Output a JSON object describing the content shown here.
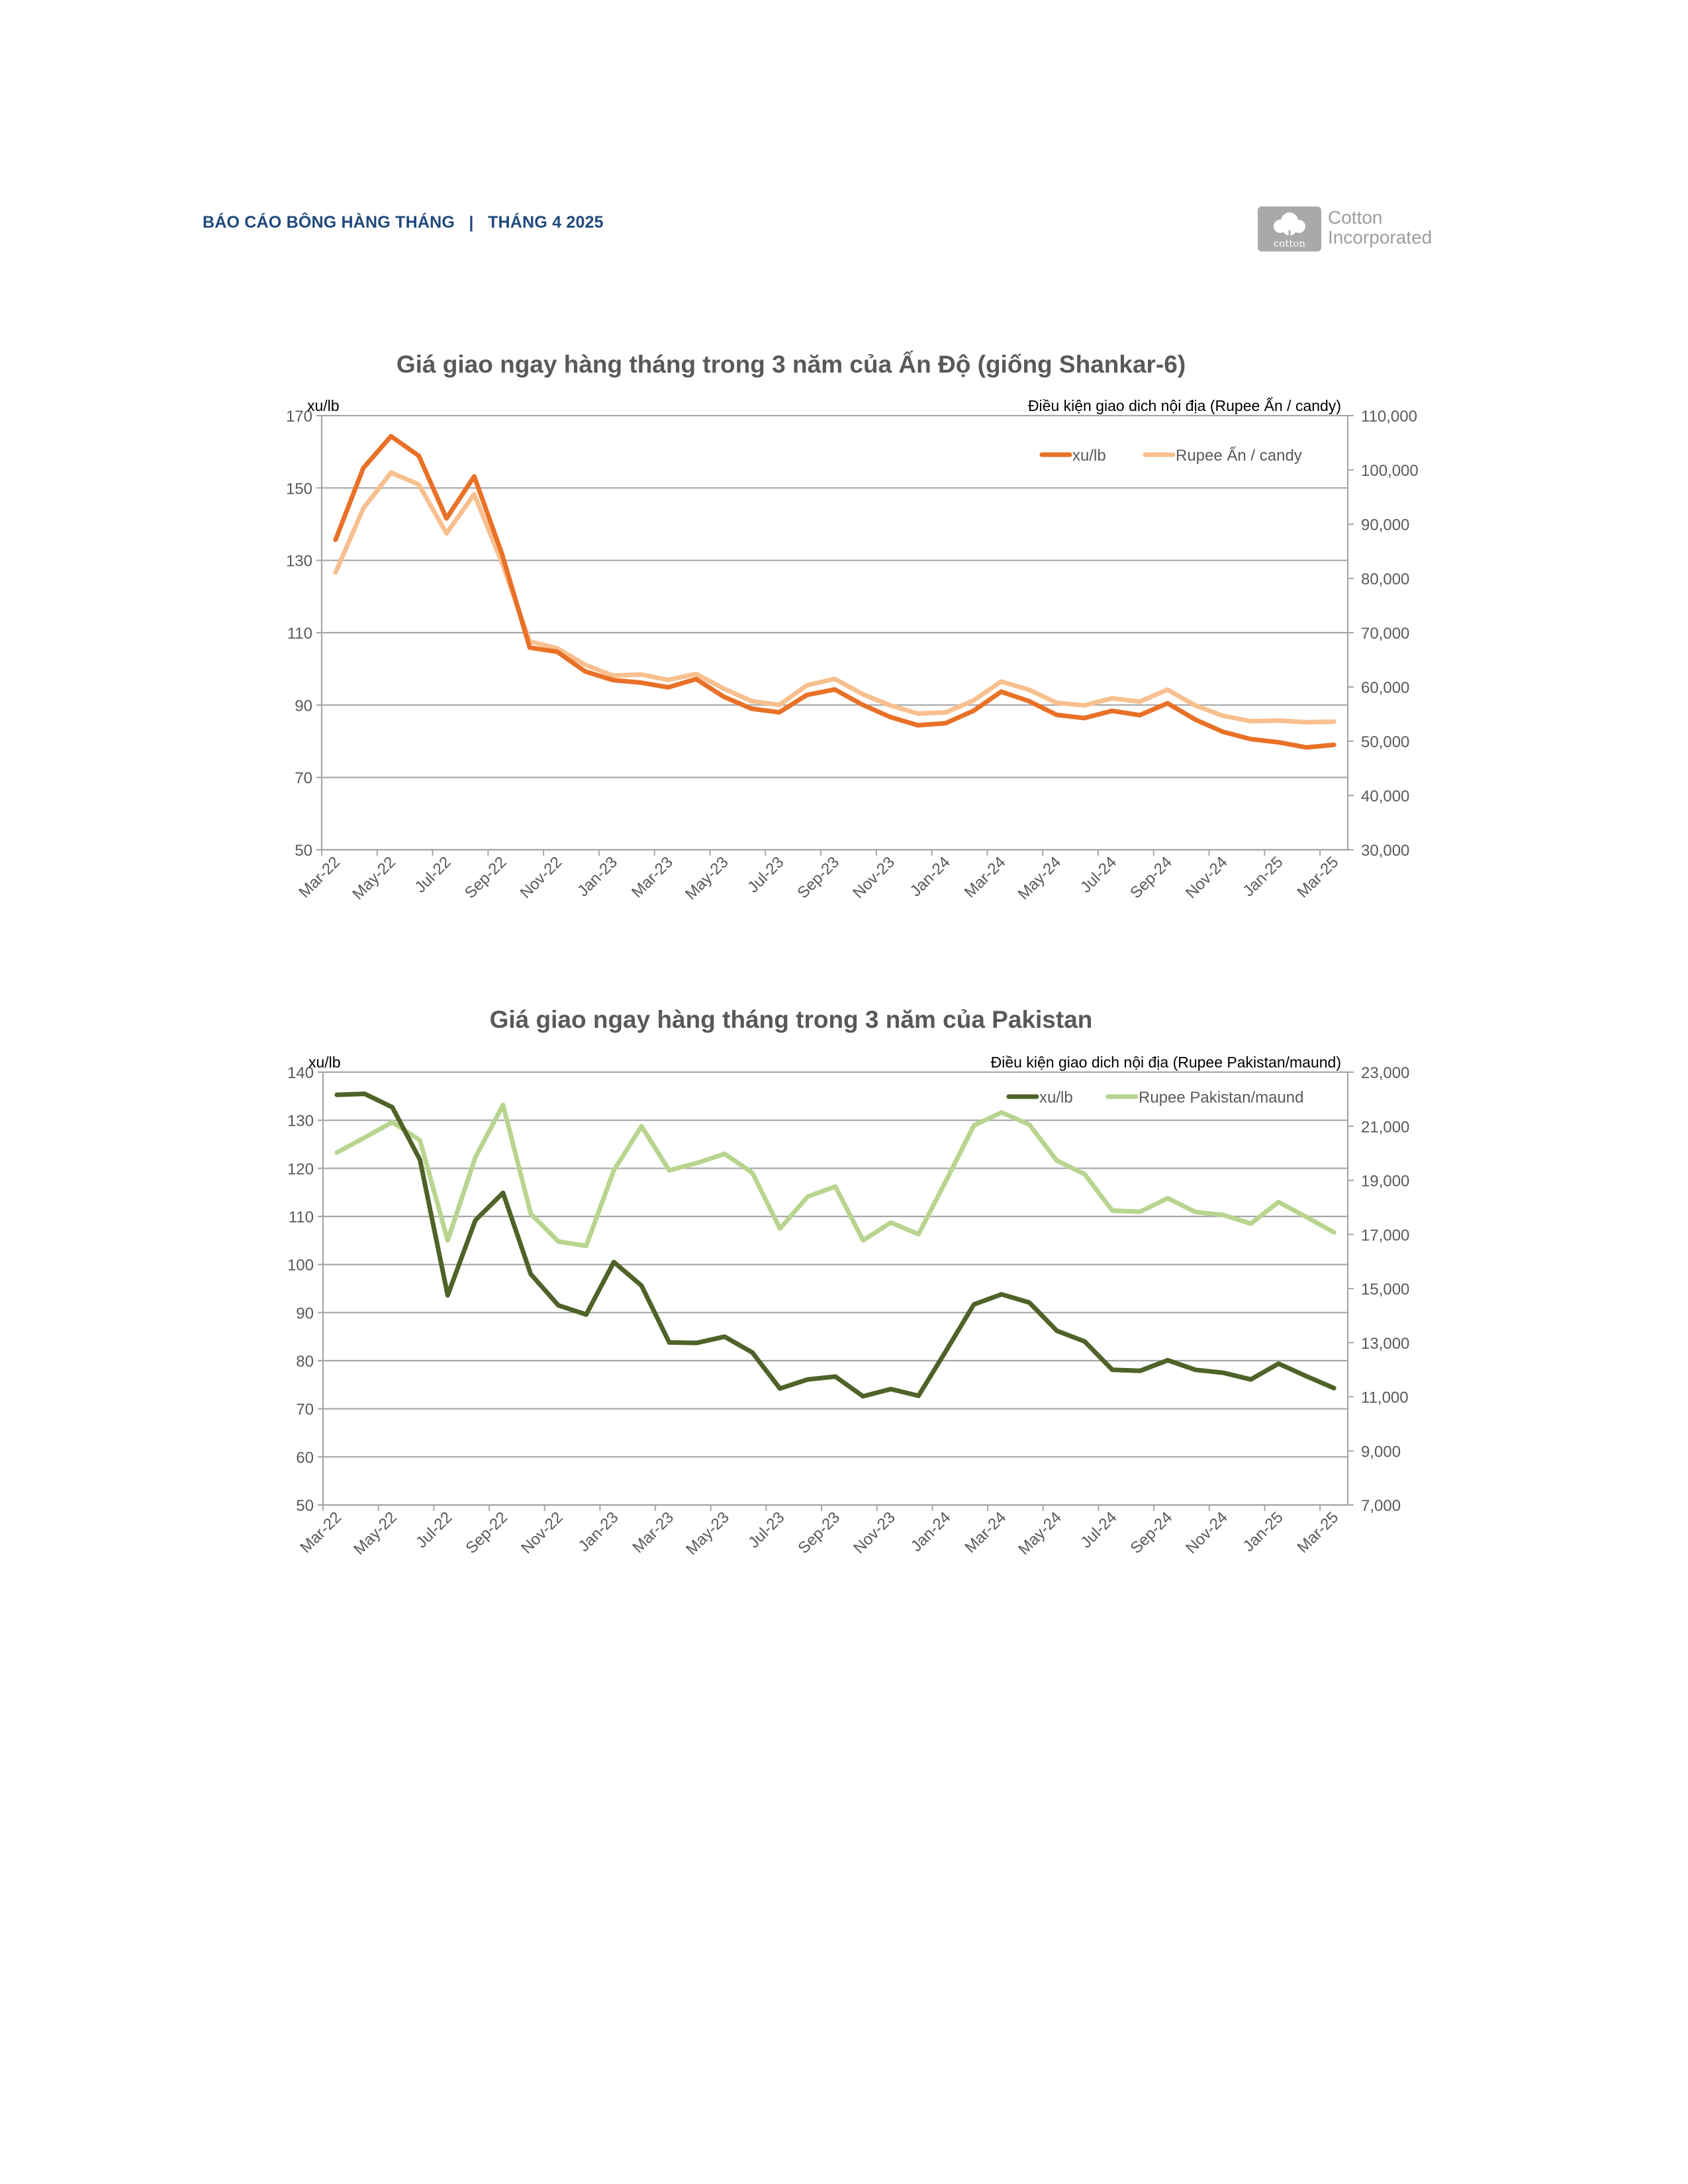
{
  "header": {
    "report": "BÁO CÁO BÔNG HÀNG THÁNG",
    "separator": "|",
    "issue": "THÁNG 4 2025"
  },
  "logo": {
    "mark_text": "cotton",
    "line1": "Cotton",
    "line2": "Incorporated",
    "color": "#a9a9ab"
  },
  "chart_data": [
    {
      "type": "line",
      "title": "Giá giao ngay hàng tháng trong 3 năm của Ấn Độ (giống Shankar-6)",
      "ylabel": "xu/lb",
      "y2label": "Điều kiện giao dich nội địa (Rupee Ấn / candy)",
      "ylim": [
        50,
        170
      ],
      "y2lim": [
        30000,
        110000
      ],
      "yticks": [
        "50",
        "70",
        "90",
        "110",
        "130",
        "150",
        "170"
      ],
      "y2ticks": [
        "30,000",
        "40,000",
        "50,000",
        "60,000",
        "70,000",
        "80,000",
        "90,000",
        "100,000",
        "110,000"
      ],
      "grid": true,
      "legend_position": "top-right",
      "x": [
        "Mar-22",
        "Apr-22",
        "May-22",
        "Jun-22",
        "Jul-22",
        "Aug-22",
        "Sep-22",
        "Oct-22",
        "Nov-22",
        "Dec-22",
        "Jan-23",
        "Feb-23",
        "Mar-23",
        "Apr-23",
        "May-23",
        "Jun-23",
        "Jul-23",
        "Aug-23",
        "Sep-23",
        "Oct-23",
        "Nov-23",
        "Dec-23",
        "Jan-24",
        "Feb-24",
        "Mar-24",
        "Apr-24",
        "May-24",
        "Jun-24",
        "Jul-24",
        "Aug-24",
        "Sep-24",
        "Oct-24",
        "Nov-24",
        "Dec-24",
        "Jan-25",
        "Feb-25",
        "Mar-25"
      ],
      "xticklabels": [
        "Mar-22",
        "May-22",
        "Jul-22",
        "Sep-22",
        "Nov-22",
        "Jan-23",
        "Mar-23",
        "May-23",
        "Jul-23",
        "Sep-23",
        "Nov-23",
        "Jan-24",
        "Mar-24",
        "May-24",
        "Jul-24",
        "Sep-24",
        "Nov-24",
        "Jan-25",
        "Mar-25"
      ],
      "series": [
        {
          "name": "xu/lb",
          "axis": "left",
          "color": "#e87127",
          "values": [
            135.7,
            155.5,
            164.3,
            158.9,
            141.6,
            153.2,
            131.8,
            105.9,
            104.7,
            99.3,
            96.9,
            96.2,
            94.9,
            97.2,
            92.3,
            89.0,
            88.0,
            92.8,
            94.3,
            90.1,
            86.7,
            84.4,
            85.0,
            88.4,
            93.7,
            91.1,
            87.3,
            86.4,
            88.4,
            87.2,
            90.5,
            86.0,
            82.6,
            80.6,
            79.7,
            78.3,
            79.0
          ]
        },
        {
          "name": "Rupee Ấn / candy",
          "axis": "right",
          "color": "#f8c08f",
          "values": [
            81100,
            92900,
            99500,
            97300,
            88300,
            95500,
            82900,
            68400,
            67100,
            64100,
            62100,
            62300,
            61300,
            62400,
            59700,
            57400,
            56700,
            60300,
            61500,
            58700,
            56600,
            55100,
            55300,
            57500,
            61000,
            59500,
            57100,
            56600,
            57900,
            57300,
            59500,
            56600,
            54700,
            53700,
            53800,
            53500,
            53600
          ]
        }
      ]
    },
    {
      "type": "line",
      "title": "Giá giao ngay hàng tháng trong 3 năm của Pakistan",
      "ylabel": "xu/lb",
      "y2label": "Điều kiện giao dich nội địa (Rupee Pakistan/maund)",
      "ylim": [
        50,
        140
      ],
      "y2lim": [
        7000,
        23000
      ],
      "yticks": [
        "50",
        "60",
        "70",
        "80",
        "90",
        "100",
        "110",
        "120",
        "130",
        "140"
      ],
      "y2ticks": [
        "7,000",
        "9,000",
        "11,000",
        "13,000",
        "15,000",
        "17,000",
        "19,000",
        "21,000",
        "23,000"
      ],
      "grid": true,
      "legend_position": "top-right",
      "x": [
        "Mar-22",
        "Apr-22",
        "May-22",
        "Jun-22",
        "Jul-22",
        "Aug-22",
        "Sep-22",
        "Oct-22",
        "Nov-22",
        "Dec-22",
        "Jan-23",
        "Feb-23",
        "Mar-23",
        "Apr-23",
        "May-23",
        "Jun-23",
        "Jul-23",
        "Aug-23",
        "Sep-23",
        "Oct-23",
        "Nov-23",
        "Dec-23",
        "Jan-24",
        "Feb-24",
        "Mar-24",
        "Apr-24",
        "May-24",
        "Jun-24",
        "Jul-24",
        "Aug-24",
        "Sep-24",
        "Oct-24",
        "Nov-24",
        "Dec-24",
        "Jan-25",
        "Feb-25",
        "Mar-25"
      ],
      "xticklabels": [
        "Mar-22",
        "May-22",
        "Jul-22",
        "Sep-22",
        "Nov-22",
        "Jan-23",
        "Mar-23",
        "May-23",
        "Jul-23",
        "Sep-23",
        "Nov-23",
        "Jan-24",
        "Mar-24",
        "May-24",
        "Jul-24",
        "Sep-24",
        "Nov-24",
        "Jan-25",
        "Mar-25"
      ],
      "series": [
        {
          "name": "xu/lb",
          "axis": "left",
          "color": "#4f6228",
          "values": [
            135.3,
            135.5,
            132.7,
            121.8,
            93.6,
            109.2,
            114.9,
            98.0,
            91.5,
            89.6,
            100.5,
            95.6,
            83.8,
            83.7,
            85.0,
            81.7,
            74.2,
            76.1,
            76.7,
            72.6,
            74.1,
            72.7,
            82.1,
            91.7,
            93.8,
            92.1,
            86.2,
            84.0,
            78.1,
            77.9,
            80.1,
            78.1,
            77.5,
            76.1,
            79.4,
            76.8,
            74.3
          ]
        },
        {
          "name": "Rupee Pakistan/maund",
          "axis": "right",
          "color": "#b7d58e",
          "values": [
            20030,
            20580,
            21150,
            20480,
            16780,
            19850,
            21790,
            17770,
            16740,
            16580,
            19370,
            21000,
            19370,
            19640,
            19980,
            19280,
            17220,
            18400,
            18770,
            16780,
            17440,
            17010,
            19000,
            21030,
            21510,
            21060,
            19730,
            19230,
            17880,
            17840,
            18340,
            17830,
            17720,
            17400,
            18200,
            17650,
            17080
          ]
        }
      ]
    }
  ]
}
